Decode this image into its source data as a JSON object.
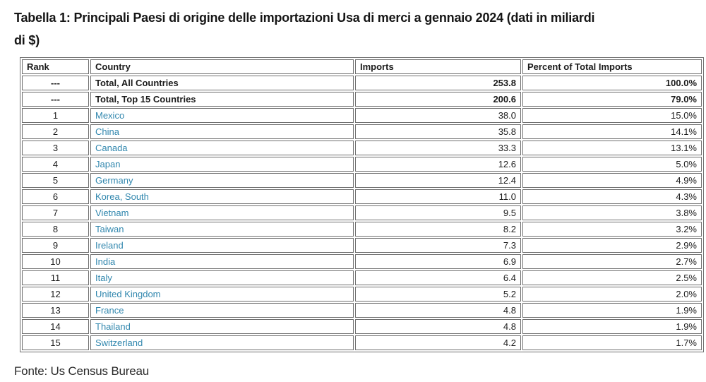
{
  "page": {
    "title_line1": "Tabella 1: Principali Paesi di origine delle importazioni Usa di merci a gennaio 2024 (dati in miliardi",
    "title_line2": "di $)",
    "source": "Fonte: Us Census Bureau"
  },
  "colors": {
    "link_blue": "#3187ae",
    "border_gray": "#6f6f6f",
    "text_dark": "#1b1b1b"
  },
  "chart_data": {
    "type": "table",
    "title": "Tabella 1: Principali Paesi di origine delle importazioni Usa di merci a gennaio 2024 (dati in miliardi di $)",
    "source": "Fonte: Us Census Bureau",
    "columns": [
      "Rank",
      "Country",
      "Imports",
      "Percent of Total Imports"
    ],
    "rows": [
      {
        "rank": "---",
        "country": "Total, All Countries",
        "imports": "253.8",
        "percent": "100.0%",
        "bold": true,
        "country_is_link": false
      },
      {
        "rank": "---",
        "country": "Total, Top 15 Countries",
        "imports": "200.6",
        "percent": "79.0%",
        "bold": true,
        "country_is_link": false
      },
      {
        "rank": "1",
        "country": "Mexico",
        "imports": "38.0",
        "percent": "15.0%",
        "bold": false,
        "country_is_link": true
      },
      {
        "rank": "2",
        "country": "China",
        "imports": "35.8",
        "percent": "14.1%",
        "bold": false,
        "country_is_link": true
      },
      {
        "rank": "3",
        "country": "Canada",
        "imports": "33.3",
        "percent": "13.1%",
        "bold": false,
        "country_is_link": true
      },
      {
        "rank": "4",
        "country": "Japan",
        "imports": "12.6",
        "percent": "5.0%",
        "bold": false,
        "country_is_link": true
      },
      {
        "rank": "5",
        "country": "Germany",
        "imports": "12.4",
        "percent": "4.9%",
        "bold": false,
        "country_is_link": true
      },
      {
        "rank": "6",
        "country": "Korea, South",
        "imports": "11.0",
        "percent": "4.3%",
        "bold": false,
        "country_is_link": true
      },
      {
        "rank": "7",
        "country": "Vietnam",
        "imports": "9.5",
        "percent": "3.8%",
        "bold": false,
        "country_is_link": true
      },
      {
        "rank": "8",
        "country": "Taiwan",
        "imports": "8.2",
        "percent": "3.2%",
        "bold": false,
        "country_is_link": true
      },
      {
        "rank": "9",
        "country": "Ireland",
        "imports": "7.3",
        "percent": "2.9%",
        "bold": false,
        "country_is_link": true
      },
      {
        "rank": "10",
        "country": "India",
        "imports": "6.9",
        "percent": "2.7%",
        "bold": false,
        "country_is_link": true
      },
      {
        "rank": "11",
        "country": "Italy",
        "imports": "6.4",
        "percent": "2.5%",
        "bold": false,
        "country_is_link": true
      },
      {
        "rank": "12",
        "country": "United Kingdom",
        "imports": "5.2",
        "percent": "2.0%",
        "bold": false,
        "country_is_link": true
      },
      {
        "rank": "13",
        "country": "France",
        "imports": "4.8",
        "percent": "1.9%",
        "bold": false,
        "country_is_link": true
      },
      {
        "rank": "14",
        "country": "Thailand",
        "imports": "4.8",
        "percent": "1.9%",
        "bold": false,
        "country_is_link": true
      },
      {
        "rank": "15",
        "country": "Switzerland",
        "imports": "4.2",
        "percent": "1.7%",
        "bold": false,
        "country_is_link": true
      }
    ]
  }
}
